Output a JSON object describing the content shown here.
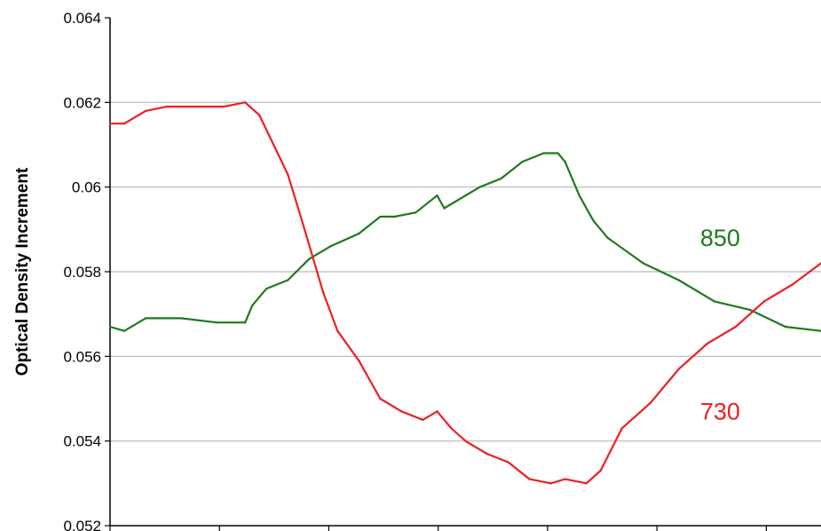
{
  "chart_data": {
    "type": "line",
    "title": "",
    "xlabel": "",
    "ylabel": "Optical Density Increment",
    "ylim": [
      0.052,
      0.064
    ],
    "yticks": [
      "0.064",
      "0.062",
      "0.06",
      "0.058",
      "0.056",
      "0.054",
      "0.052"
    ],
    "xlim": [
      0,
      1
    ],
    "x_tick_count": 6,
    "grid": "horizontal",
    "legend": "none",
    "series": [
      {
        "name": "850",
        "color": "#1e7a1e",
        "x": [
          0,
          0.02,
          0.05,
          0.1,
          0.15,
          0.19,
          0.2,
          0.22,
          0.25,
          0.28,
          0.31,
          0.35,
          0.38,
          0.4,
          0.43,
          0.46,
          0.47,
          0.49,
          0.52,
          0.55,
          0.58,
          0.61,
          0.63,
          0.64,
          0.66,
          0.68,
          0.7,
          0.75,
          0.8,
          0.85,
          0.9,
          0.95,
          1.0
        ],
        "y": [
          0.0567,
          0.0566,
          0.0569,
          0.0569,
          0.0568,
          0.0568,
          0.0572,
          0.0576,
          0.0578,
          0.0583,
          0.0586,
          0.0589,
          0.0593,
          0.0593,
          0.0594,
          0.0598,
          0.0595,
          0.0597,
          0.06,
          0.0602,
          0.0606,
          0.0608,
          0.0608,
          0.0606,
          0.0598,
          0.0592,
          0.0588,
          0.0582,
          0.0578,
          0.0573,
          0.0571,
          0.0567,
          0.0566
        ]
      },
      {
        "name": "730",
        "color": "#ee1f1f",
        "x": [
          0,
          0.02,
          0.05,
          0.08,
          0.12,
          0.16,
          0.19,
          0.21,
          0.23,
          0.25,
          0.27,
          0.3,
          0.32,
          0.35,
          0.38,
          0.41,
          0.44,
          0.46,
          0.48,
          0.5,
          0.53,
          0.56,
          0.59,
          0.62,
          0.64,
          0.67,
          0.69,
          0.72,
          0.76,
          0.8,
          0.84,
          0.88,
          0.92,
          0.96,
          1.0
        ],
        "y": [
          0.0615,
          0.0615,
          0.0618,
          0.0619,
          0.0619,
          0.0619,
          0.062,
          0.0617,
          0.061,
          0.0603,
          0.0592,
          0.0575,
          0.0566,
          0.0559,
          0.055,
          0.0547,
          0.0545,
          0.0547,
          0.0543,
          0.054,
          0.0537,
          0.0535,
          0.0531,
          0.053,
          0.0531,
          0.053,
          0.0533,
          0.0543,
          0.0549,
          0.0557,
          0.0563,
          0.0567,
          0.0573,
          0.0577,
          0.0582
        ]
      }
    ],
    "annotations": [
      {
        "text": "850",
        "x": 0.83,
        "y": 0.0588,
        "color": "#1e7a1e"
      },
      {
        "text": "730",
        "x": 0.83,
        "y": 0.0547,
        "color": "#ee1f1f"
      }
    ]
  }
}
